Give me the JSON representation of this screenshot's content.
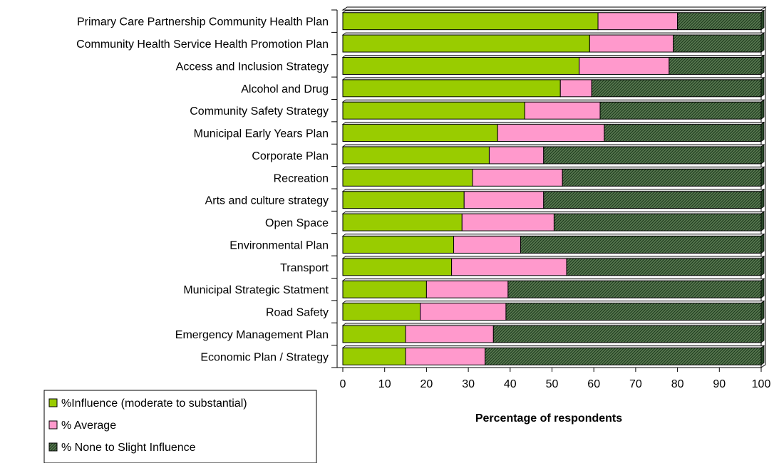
{
  "chart_data": {
    "type": "bar",
    "orientation": "horizontal",
    "stacked": true,
    "title": "",
    "xlabel": "Percentage of respondents",
    "ylabel": "",
    "xlim": [
      0,
      100
    ],
    "x_ticks": [
      "0",
      "10",
      "20",
      "30",
      "40",
      "50",
      "60",
      "70",
      "80",
      "90",
      "100"
    ],
    "grid": false,
    "legend_position": "bottom-left",
    "categories": [
      "Primary Care Partnership Community Health Plan",
      "Community Health Service Health Promotion Plan",
      "Access and Inclusion Strategy",
      "Alcohol and Drug",
      "Community Safety Strategy",
      "Municipal Early Years Plan",
      "Corporate Plan",
      "Recreation",
      "Arts and culture strategy",
      "Open Space",
      "Environmental Plan",
      "Transport",
      "Municipal Strategic Statment",
      "Road Safety",
      "Emergency Management Plan",
      "Economic Plan / Strategy"
    ],
    "series": [
      {
        "name": "%Influence (moderate to substantial)",
        "color": "#99cc00",
        "pattern": "solid",
        "values": [
          61,
          59,
          56.5,
          52,
          43.5,
          37,
          35,
          31,
          29,
          28.5,
          26.5,
          26,
          20,
          18.5,
          15,
          15
        ]
      },
      {
        "name": "% Average",
        "color": "#ff99cc",
        "pattern": "solid",
        "values": [
          19,
          20,
          21.5,
          7.5,
          18,
          25.5,
          13,
          21.5,
          19,
          22,
          16,
          27.5,
          19.5,
          20.5,
          21,
          19
        ]
      },
      {
        "name": "% None to Slight Influence",
        "color": "#336633",
        "pattern": "diagonal-hatch",
        "values": [
          20,
          21,
          22,
          40.5,
          38.5,
          37.5,
          52,
          47.5,
          52,
          49.5,
          57.5,
          46.5,
          60.5,
          61,
          64,
          66
        ]
      }
    ]
  }
}
